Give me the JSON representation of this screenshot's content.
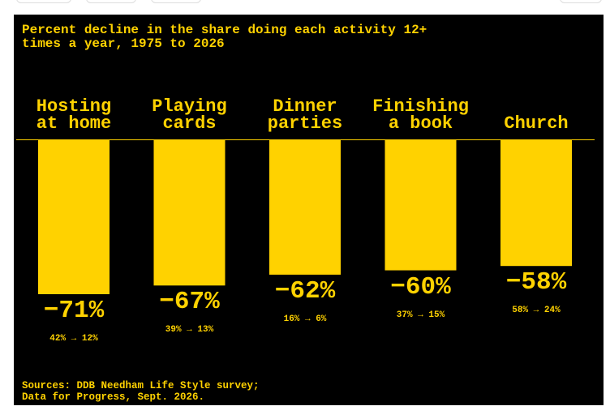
{
  "chart_data": {
    "type": "bar",
    "title": "Percent decline in the share doing each activity 12+\ntimes a year, 1975 to 2026",
    "categories": [
      "Hosting\nat home",
      "Playing\ncards",
      "Dinner\nparties",
      "Finishing\na book",
      "Church"
    ],
    "values": [
      -71,
      -67,
      -62,
      -60,
      -58
    ],
    "value_labels": [
      "−71%",
      "−67%",
      "−62%",
      "−60%",
      "−58%"
    ],
    "changes": [
      "42% → 12%",
      "39% → 13%",
      "16% → 6%",
      "37% → 15%",
      "58% → 24%"
    ],
    "color": "#ffd200",
    "sources": "Sources: DDB Needham Life Style survey;\nData for Progress, Sept. 2026."
  }
}
